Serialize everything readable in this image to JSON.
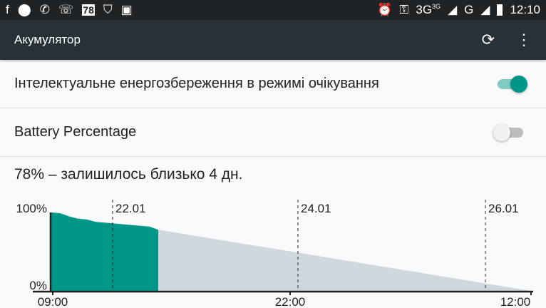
{
  "status_bar": {
    "left_icons": [
      "facebook-icon",
      "location-icon",
      "wifi-call-icon",
      "phone-icon",
      "badge-78-icon",
      "shield-icon",
      "shopping-bag-icon"
    ],
    "badge": "78",
    "network": "3G",
    "network_small": "3G",
    "network2": "G",
    "time": "12:10"
  },
  "appbar": {
    "title": "Акумулятор",
    "refresh_icon": "refresh-icon",
    "menu_icon": "more-vert-icon"
  },
  "settings": [
    {
      "label": "Інтелектуальне енергозбереження в режимі очікування",
      "enabled": true
    },
    {
      "label": "Battery Percentage",
      "enabled": false
    }
  ],
  "summary": "78% – залишилось близько 4 дн.",
  "colors": {
    "accent": "#009688",
    "projection": "#cfd8dc",
    "appbar": "#263238"
  },
  "chart_data": {
    "type": "area",
    "y_ticks": [
      "100%",
      "0%"
    ],
    "ylim": [
      0,
      100
    ],
    "x_ticks": [
      "09:00",
      "22:00",
      "12:00"
    ],
    "date_markers": [
      "22.01",
      "24.01",
      "26.01"
    ],
    "current_level": 78,
    "series": [
      {
        "values": [
          100,
          99,
          95,
          92,
          91,
          88,
          87,
          86,
          85,
          84,
          83,
          82,
          78
        ]
      }
    ]
  }
}
